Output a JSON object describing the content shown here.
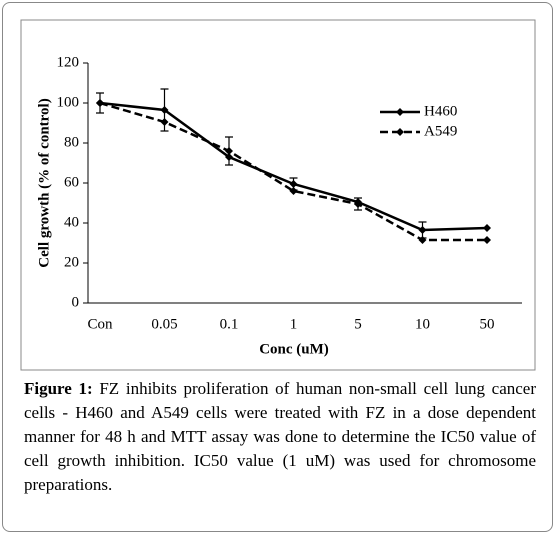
{
  "chart_data": {
    "type": "line",
    "categories": [
      "Con",
      "0.05",
      "0.1",
      "1",
      "5",
      "10",
      "50"
    ],
    "series": [
      {
        "name": "H460",
        "color": "#000000",
        "dashed": false,
        "values": [
          100,
          96.5,
          73,
          59.5,
          50.5,
          36.5,
          37.5
        ],
        "errors": [
          5,
          10.5,
          null,
          3,
          null,
          4,
          null
        ]
      },
      {
        "name": "A549",
        "color": "#000000",
        "dashed": true,
        "values": [
          100,
          90.5,
          76,
          56,
          49.5,
          31.5,
          31.5
        ],
        "errors": [
          null,
          null,
          7,
          null,
          3,
          null,
          null
        ]
      }
    ],
    "ylim": [
      0,
      120
    ],
    "yticks": [
      0,
      20,
      40,
      60,
      80,
      100,
      120
    ],
    "ylabel": "Cell growth (% of control)",
    "xlabel": "Conc (uM)",
    "legend": "upper right"
  },
  "caption": {
    "label": "Figure 1:",
    "text": "FZ inhibits proliferation of human non-small cell lung cancer cells - H460 and A549 cells were treated with FZ in a dose dependent manner for 48 h and MTT assay was done to determine the IC50 value of cell growth inhibition. IC50 value (1 uM) was used for chromosome preparations."
  }
}
